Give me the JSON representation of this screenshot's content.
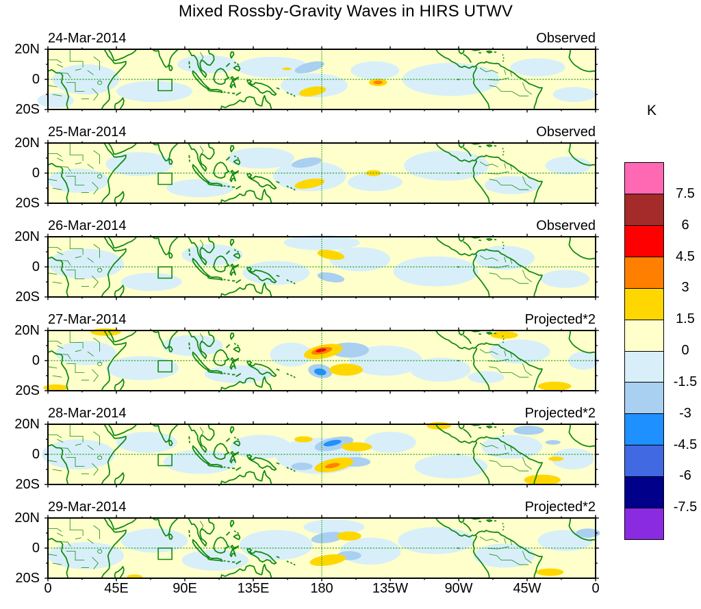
{
  "figure": {
    "title": "Mixed Rossby-Gravity Waves in HIRS UTWV",
    "x_axis_labels": [
      "0",
      "45E",
      "90E",
      "135E",
      "180",
      "135W",
      "90W",
      "45W",
      "0"
    ],
    "x_axis_lons": [
      0,
      45,
      90,
      135,
      180,
      225,
      270,
      315,
      360
    ],
    "y_axis_labels": [
      "20N",
      "0",
      "20S"
    ],
    "colorbar": {
      "unit": "K",
      "tick_labels": [
        "7.5",
        "6",
        "4.5",
        "3",
        "1.5",
        "0",
        "-1.5",
        "-3",
        "-4.5",
        "-6",
        "-7.5"
      ],
      "colors_top_to_bottom": [
        "#FF69B4",
        "#A52A2A",
        "#FF0000",
        "#FF8000",
        "#FFD700",
        "#FFFFCC",
        "#D8EFF9",
        "#A9CFF1",
        "#1E90FF",
        "#4169E1",
        "#00008B",
        "#8A2BE2"
      ]
    },
    "map_colors": {
      "background_positive_weak": "#FFFFCC",
      "coastline_green": "#108A10",
      "gridline_green": "#2FA12F",
      "border_black": "#000000"
    }
  },
  "chart_data": {
    "type": "heatmap",
    "title": "Mixed Rossby-Gravity Waves in HIRS UTWV",
    "units": "K",
    "xlabel_ticks": [
      "0",
      "45E",
      "90E",
      "135E",
      "180",
      "135W",
      "90W",
      "45W",
      "0"
    ],
    "ylabel_ticks": [
      "20N",
      "0",
      "20S"
    ],
    "x_range_deg_lon": [
      0,
      360
    ],
    "y_range_deg_lat": [
      -20,
      20
    ],
    "level_boundaries_desc": [
      7.5,
      6,
      4.5,
      3,
      1.5,
      0,
      -1.5,
      -3,
      -4.5,
      -6,
      -7.5
    ],
    "palette_top_to_bottom": [
      "#FF69B4",
      "#A52A2A",
      "#FF0000",
      "#FF8000",
      "#FFD700",
      "#FFFFCC",
      "#D8EFF9",
      "#A9CFF1",
      "#1E90FF",
      "#4169E1",
      "#00008B",
      "#8A2BE2"
    ],
    "gridlines": {
      "equator_dashed": true,
      "dateline_dashed_lon": 180
    },
    "region_box": {
      "lon_min": 72.5,
      "lon_max": 81.5,
      "lat_min": -7.5,
      "lat_max": 0
    },
    "feature_format": [
      "lon_deg_east",
      "lat_deg_north",
      "rx_deg",
      "ry_deg",
      "rotation_deg",
      "peak_anomaly_K"
    ],
    "panels": [
      {
        "date": "24-Mar-2014",
        "label": "Observed",
        "features": [
          [
            25,
            0,
            22,
            10,
            0,
            -1
          ],
          [
            70,
            -8,
            25,
            7,
            0,
            -1
          ],
          [
            105,
            10,
            20,
            6,
            0,
            -1
          ],
          [
            148,
            8,
            24,
            7,
            0,
            -1
          ],
          [
            175,
            -4,
            22,
            8,
            0,
            -1
          ],
          [
            215,
            6,
            16,
            6,
            0,
            -1
          ],
          [
            265,
            0,
            32,
            11,
            0,
            -1
          ],
          [
            322,
            8,
            18,
            6,
            0,
            -1
          ],
          [
            346,
            -10,
            14,
            5,
            0,
            -1
          ],
          [
            5,
            -14,
            12,
            5,
            0,
            -1
          ],
          [
            172,
            8,
            10,
            3.2,
            -15,
            -2.5
          ],
          [
            174,
            -8,
            9,
            3,
            -10,
            2.5
          ],
          [
            217,
            -2,
            6,
            2.5,
            0,
            2.5
          ],
          [
            157,
            7,
            3,
            0.9,
            0,
            2.5
          ],
          [
            217,
            -2,
            3,
            1.2,
            0,
            4
          ]
        ]
      },
      {
        "date": "25-Mar-2014",
        "label": "Observed",
        "features": [
          [
            20,
            -5,
            20,
            8,
            0,
            -1
          ],
          [
            60,
            6,
            22,
            8,
            0,
            -1
          ],
          [
            100,
            -10,
            22,
            6,
            0,
            -1
          ],
          [
            140,
            10,
            22,
            7,
            0,
            -1
          ],
          [
            172,
            -2,
            24,
            10,
            0,
            -1
          ],
          [
            215,
            -6,
            18,
            6,
            0,
            -1
          ],
          [
            262,
            5,
            28,
            10,
            0,
            -1
          ],
          [
            305,
            -8,
            18,
            6,
            0,
            -1
          ],
          [
            342,
            5,
            15,
            6,
            0,
            -1
          ],
          [
            170,
            7,
            10,
            3,
            -10,
            -2.5
          ],
          [
            172,
            -7,
            10,
            3,
            -10,
            2.5
          ],
          [
            214,
            0,
            5,
            2,
            0,
            2.5
          ]
        ]
      },
      {
        "date": "26-Mar-2014",
        "label": "Observed",
        "features": [
          [
            25,
            2,
            25,
            10,
            0,
            -1
          ],
          [
            68,
            -10,
            20,
            6,
            0,
            -1
          ],
          [
            108,
            8,
            20,
            7,
            0,
            -1
          ],
          [
            150,
            -4,
            22,
            8,
            0,
            -1
          ],
          [
            205,
            5,
            20,
            8,
            0,
            -1
          ],
          [
            255,
            -3,
            28,
            10,
            0,
            -1
          ],
          [
            300,
            6,
            20,
            8,
            0,
            -1
          ],
          [
            340,
            -8,
            16,
            6,
            0,
            -1
          ],
          [
            180,
            16,
            25,
            5,
            0,
            -1
          ],
          [
            186,
            8,
            9,
            3,
            10,
            2.5
          ],
          [
            186,
            -7,
            9,
            3,
            10,
            -2.5
          ]
        ]
      },
      {
        "date": "27-Mar-2014",
        "label": "Projected*2",
        "features": [
          [
            25,
            5,
            20,
            8,
            0,
            -1
          ],
          [
            62,
            -5,
            24,
            8,
            0,
            -1
          ],
          [
            95,
            10,
            20,
            7,
            0,
            -1
          ],
          [
            125,
            -9,
            22,
            6,
            0,
            -1
          ],
          [
            160,
            4,
            14,
            8,
            0,
            -1
          ],
          [
            222,
            0,
            24,
            10,
            0,
            -1
          ],
          [
            258,
            -6,
            20,
            8,
            0,
            -1
          ],
          [
            310,
            6,
            20,
            8,
            0,
            -1
          ],
          [
            352,
            0,
            10,
            6,
            0,
            -1
          ],
          [
            288,
            -11,
            12,
            4,
            0,
            -1
          ],
          [
            198,
            7,
            13,
            5,
            0,
            -2.5
          ],
          [
            179,
            -7,
            8,
            4.5,
            10,
            -2.5
          ],
          [
            181,
            6,
            13,
            4.5,
            -12,
            2.5
          ],
          [
            196,
            -6,
            11,
            4,
            0,
            2.5
          ],
          [
            300,
            17,
            9,
            2.5,
            0,
            2.5
          ],
          [
            333,
            -17,
            11,
            3,
            0,
            2.5
          ],
          [
            5,
            -18,
            8,
            2.2,
            0,
            2.5
          ],
          [
            38,
            19,
            10,
            2.5,
            0,
            2.5
          ],
          [
            180,
            6.5,
            7,
            2.2,
            -12,
            4
          ],
          [
            179,
            -7.5,
            4,
            2.2,
            10,
            -4
          ],
          [
            179.5,
            6.8,
            3.5,
            1.1,
            -12,
            5
          ]
        ]
      },
      {
        "date": "28-Mar-2014",
        "label": "Projected*2",
        "features": [
          [
            20,
            0,
            24,
            10,
            0,
            -1
          ],
          [
            65,
            8,
            20,
            7,
            0,
            -1
          ],
          [
            100,
            -5,
            24,
            8,
            0,
            -1
          ],
          [
            140,
            5,
            20,
            8,
            0,
            -1
          ],
          [
            178,
            -1,
            28,
            12,
            0,
            -1
          ],
          [
            225,
            8,
            17,
            7,
            0,
            -1
          ],
          [
            265,
            -8,
            24,
            8,
            0,
            -1
          ],
          [
            305,
            5,
            20,
            8,
            0,
            -1
          ],
          [
            345,
            -3,
            14,
            7,
            0,
            -1
          ],
          [
            188,
            7,
            13,
            4.2,
            -12,
            -2.5
          ],
          [
            202,
            -5,
            10,
            3.2,
            0,
            -2.5
          ],
          [
            167,
            -8,
            7,
            2.5,
            0,
            -2.5
          ],
          [
            316,
            16,
            10,
            3,
            0,
            -2.5
          ],
          [
            332,
            8,
            5,
            1.5,
            0,
            -2.5
          ],
          [
            188,
            -7,
            13,
            4.2,
            -12,
            2.5
          ],
          [
            203,
            5,
            10,
            3,
            0,
            2.5
          ],
          [
            168,
            10,
            6,
            2,
            0,
            2.5
          ],
          [
            257,
            19,
            8,
            2.5,
            0,
            2.5
          ],
          [
            334,
            -3,
            5,
            1.5,
            0,
            2.5
          ],
          [
            325,
            -17,
            12,
            3.5,
            0,
            2.5
          ],
          [
            187,
            7.5,
            6,
            1.8,
            -12,
            -4
          ],
          [
            187,
            -7.5,
            5,
            1.5,
            -12,
            4
          ]
        ]
      },
      {
        "date": "29-Mar-2014",
        "label": "Projected*2",
        "features": [
          [
            25,
            -5,
            25,
            9,
            0,
            -1
          ],
          [
            70,
            5,
            22,
            8,
            0,
            -1
          ],
          [
            110,
            -8,
            22,
            7,
            0,
            -1
          ],
          [
            150,
            2,
            24,
            10,
            0,
            -1
          ],
          [
            212,
            -2,
            20,
            9,
            0,
            -1
          ],
          [
            255,
            5,
            25,
            9,
            0,
            -1
          ],
          [
            300,
            -5,
            20,
            8,
            0,
            -1
          ],
          [
            340,
            5,
            18,
            7,
            0,
            -1
          ],
          [
            188,
            14,
            20,
            5,
            0,
            -1
          ],
          [
            184,
            7,
            11,
            3.5,
            -8,
            -2.5
          ],
          [
            198,
            -5,
            8,
            3,
            0,
            -2.5
          ],
          [
            355,
            10,
            8,
            3,
            0,
            -2.5
          ],
          [
            198,
            8,
            8,
            3,
            0,
            2.5
          ],
          [
            184,
            -8,
            12,
            3.5,
            -8,
            2.5
          ],
          [
            330,
            -16,
            9,
            2.5,
            0,
            2.5
          ],
          [
            57,
            -19,
            5,
            1.5,
            0,
            2.5
          ]
        ]
      }
    ]
  }
}
